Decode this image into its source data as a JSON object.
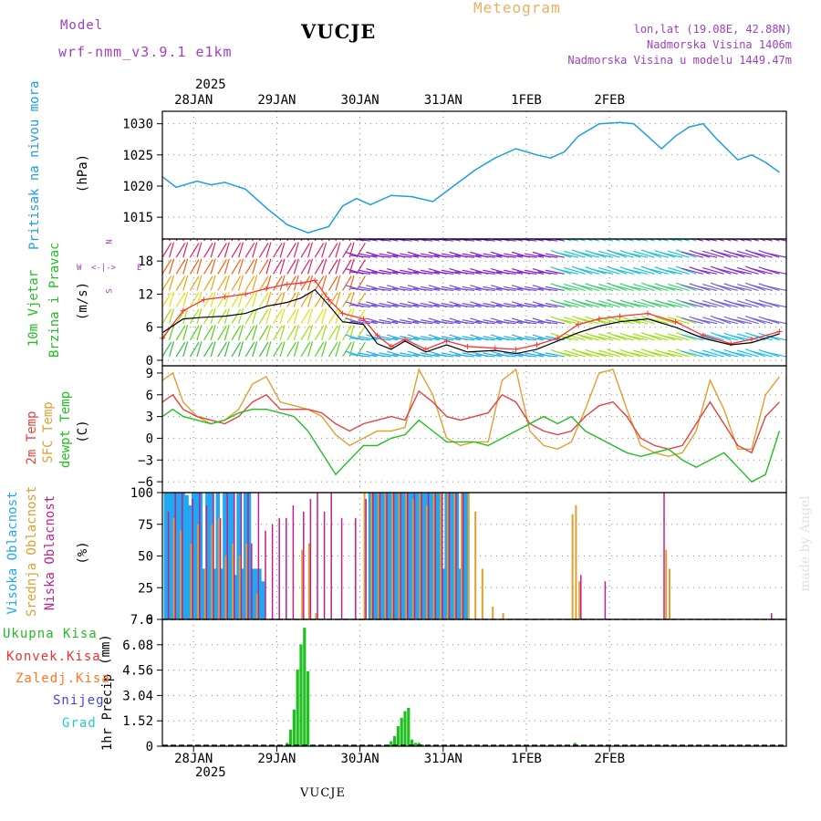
{
  "header": {
    "model_label": "Model",
    "model_name": "wrf-nmm_v3.9.1 e1km",
    "station": "VUCJE",
    "product": "Meteogram",
    "lonlat": "lon,lat (19.08E, 42.88N)",
    "elevation": "Nadmorska Visina 1406m",
    "model_elevation": "Nadmorska Visina u modelu 1449.47m",
    "bottom_station": "VUCJE",
    "watermark": "made by Angel"
  },
  "time_axis": {
    "top_year": "2025",
    "bottom_year": "2025",
    "dates": [
      "28JAN",
      "29JAN",
      "30JAN",
      "31JAN",
      "1FEB",
      "2FEB"
    ]
  },
  "panel_labels": {
    "pressure": {
      "name": "Pritisak na nivou mora",
      "unit": "(hPa)"
    },
    "wind": {
      "name1": "10m Vjetar",
      "name2": "Brzina i Pravac",
      "unit": "(m/s)",
      "compass_n": "N",
      "compass_s": "S",
      "compass_e": "E",
      "compass_w": "W",
      "compass_arrows": "<-|->"
    },
    "temp": {
      "name1": "2m Temp",
      "name2": "SFC Temp",
      "name3": "dewpt Temp",
      "unit": "(C)"
    },
    "cloud": {
      "name1": "Visoka Oblacnost",
      "name2": "Srednja Oblacnost",
      "name3": "Niska Oblacnost",
      "unit": "(%)"
    },
    "precip": {
      "name": "1hr Precip",
      "unit": "(mm)",
      "legend": [
        "Ukupna Kisa",
        "Konvek.Kisa",
        "Zaledj.Kisa",
        "Snijeg",
        "Grad"
      ]
    }
  },
  "colors": {
    "pressure_line": "#1e9ee0",
    "wind_speed": "#000000",
    "wind_gust": "#ff3333",
    "t2m": "#e84040",
    "tsfc": "#e0a030",
    "dewpt": "#20c020",
    "cloud_high": "#20a8f0",
    "cloud_mid": "#e0a030",
    "cloud_low": "#c02090",
    "precip_total": "#20c020",
    "legend_total": "#22bb22",
    "legend_conv": "#ee3333",
    "legend_frz": "#ff7722",
    "legend_snow": "#4444dd",
    "legend_hail": "#22cccc",
    "header_purple": "#a040c0",
    "header_orange": "#e8b060"
  },
  "chart_data": [
    {
      "type": "line",
      "name": "pressure",
      "time_start": "2025-01-27T15:00Z",
      "time_end": "2025-02-03T06:00Z",
      "ylabel": "(hPa)",
      "yticks": [
        1015,
        1020,
        1025,
        1030
      ],
      "ylim": [
        1011.5,
        1032
      ],
      "grid": true,
      "series": [
        {
          "x": [
            0,
            4,
            10,
            14,
            18,
            24,
            30,
            36,
            42,
            48,
            52,
            56,
            60,
            66,
            72,
            78,
            84,
            90,
            96,
            102,
            108,
            112,
            116,
            120,
            126,
            132,
            136,
            140,
            144,
            148,
            152,
            156,
            160,
            166,
            170,
            174,
            178
          ],
          "values": [
            1021.5,
            1019.8,
            1020.8,
            1020.2,
            1020.6,
            1019.5,
            1016.5,
            1013.8,
            1012.5,
            1013.5,
            1016.8,
            1018,
            1017,
            1018.5,
            1018.3,
            1017.5,
            1020,
            1022.5,
            1024.5,
            1026,
            1025,
            1024.5,
            1025.5,
            1028,
            1030,
            1030.2,
            1030,
            1028,
            1026,
            1028,
            1029.5,
            1030,
            1027.5,
            1024.2,
            1025,
            1023.8,
            1022.2
          ]
        }
      ]
    },
    {
      "type": "line",
      "name": "wind",
      "time_start": "2025-01-27T15:00Z",
      "time_end": "2025-02-03T06:00Z",
      "ylabel": "(m/s)",
      "yticks": [
        0,
        6,
        12,
        18
      ],
      "ylim": [
        -1,
        22
      ],
      "grid": true,
      "series": [
        {
          "name": "speed",
          "x": [
            0,
            6,
            12,
            18,
            24,
            30,
            36,
            40,
            44,
            48,
            52,
            58,
            62,
            66,
            70,
            76,
            82,
            88,
            96,
            102,
            108,
            114,
            120,
            126,
            132,
            140,
            148,
            156,
            164,
            170,
            178
          ],
          "values": [
            5,
            7.5,
            7.8,
            8,
            8.5,
            9.8,
            10.5,
            11.3,
            12.8,
            10,
            7,
            6.5,
            3,
            2,
            3.5,
            1.5,
            2.8,
            1.5,
            1.8,
            1.2,
            2,
            3.5,
            5,
            6.2,
            7,
            7.5,
            6,
            4,
            2.8,
            3.2,
            4.8
          ]
        },
        {
          "name": "gust",
          "x": [
            0,
            6,
            12,
            18,
            24,
            30,
            36,
            40,
            44,
            48,
            52,
            58,
            62,
            66,
            70,
            76,
            82,
            88,
            96,
            102,
            108,
            114,
            120,
            126,
            132,
            140,
            148,
            156,
            164,
            170,
            178
          ],
          "values": [
            4,
            9,
            11,
            11.5,
            12,
            13,
            13.8,
            14,
            14.5,
            11,
            8.5,
            7.5,
            4.5,
            2.5,
            3.8,
            2,
            3.5,
            2.5,
            2.2,
            2,
            2.8,
            4,
            6.5,
            7.5,
            8,
            8.5,
            7,
            4.5,
            3,
            3.8,
            5.2
          ]
        }
      ]
    },
    {
      "type": "line",
      "name": "temperature",
      "time_start": "2025-01-27T15:00Z",
      "time_end": "2025-02-03T06:00Z",
      "ylabel": "(C)",
      "yticks": [
        -6,
        -3,
        0,
        3,
        6,
        9
      ],
      "ylim": [
        -7.5,
        10
      ],
      "grid": true,
      "series": [
        {
          "name": "2m Temp",
          "x": [
            0,
            3,
            6,
            10,
            14,
            18,
            22,
            26,
            30,
            34,
            38,
            42,
            46,
            50,
            54,
            58,
            62,
            66,
            70,
            74,
            78,
            82,
            86,
            90,
            94,
            98,
            102,
            106,
            110,
            114,
            118,
            122,
            126,
            130,
            134,
            138,
            142,
            146,
            150,
            154,
            158,
            162,
            166,
            170,
            174,
            178
          ],
          "values": [
            5,
            6,
            4,
            3,
            2.5,
            2,
            3,
            5,
            6,
            4,
            4,
            4,
            3.5,
            2,
            1,
            2,
            2.5,
            3,
            2.5,
            6.5,
            5,
            3,
            2.5,
            3,
            3.5,
            6,
            5,
            2,
            1,
            0.5,
            1,
            3,
            4.5,
            5,
            3,
            0,
            -1,
            -1.5,
            -1,
            2,
            5,
            2,
            -1,
            -2,
            3,
            5
          ]
        },
        {
          "name": "SFC Temp",
          "x": [
            0,
            3,
            6,
            10,
            14,
            18,
            22,
            26,
            30,
            34,
            38,
            42,
            46,
            50,
            54,
            58,
            62,
            66,
            70,
            74,
            78,
            82,
            86,
            90,
            94,
            98,
            102,
            106,
            110,
            114,
            118,
            122,
            126,
            130,
            134,
            138,
            142,
            146,
            150,
            154,
            158,
            162,
            166,
            170,
            174,
            178
          ],
          "values": [
            8,
            9,
            5,
            3,
            2,
            2.5,
            4,
            7.5,
            8.5,
            5,
            4.5,
            4,
            3,
            0.5,
            -1,
            0,
            1,
            1,
            1.5,
            9.5,
            6,
            0,
            -1,
            -0.5,
            -0.5,
            8,
            9.5,
            1,
            -1,
            -1.5,
            -0.5,
            4,
            9,
            9.5,
            4,
            -1,
            -2,
            -2.5,
            -2,
            1,
            8,
            4,
            -1.5,
            -1.5,
            6,
            8.5
          ]
        },
        {
          "name": "dewpt Temp",
          "x": [
            0,
            3,
            6,
            10,
            14,
            18,
            22,
            26,
            30,
            34,
            38,
            42,
            46,
            50,
            54,
            58,
            62,
            66,
            70,
            74,
            78,
            82,
            86,
            90,
            94,
            98,
            102,
            106,
            110,
            114,
            118,
            122,
            126,
            130,
            134,
            138,
            142,
            146,
            150,
            154,
            158,
            162,
            166,
            170,
            174,
            178
          ],
          "values": [
            3,
            4,
            3,
            2.5,
            2,
            2.5,
            3.5,
            4,
            4,
            3.5,
            3,
            1,
            -2,
            -5,
            -3,
            -1,
            -1,
            0,
            0.5,
            2.5,
            1,
            -0.5,
            -0.5,
            -0.5,
            -1,
            0,
            1,
            2,
            3,
            2,
            3,
            1,
            0,
            -1,
            -2,
            -2.5,
            -2,
            -1.5,
            -3,
            -4,
            -3,
            -2,
            -4,
            -6,
            -5,
            1
          ]
        }
      ]
    },
    {
      "type": "bar",
      "name": "cloud_cover",
      "time_start": "2025-01-27T15:00Z",
      "time_end": "2025-02-03T06:00Z",
      "ylabel": "(%)",
      "yticks": [
        0,
        25,
        50,
        75,
        100
      ],
      "ylim": [
        0,
        100
      ],
      "series": [
        {
          "name": "Visoka Oblacnost",
          "x": [
            1,
            2,
            3,
            4,
            5,
            6,
            7,
            8,
            9,
            10,
            11,
            12,
            13,
            14,
            15,
            16,
            17,
            18,
            19,
            20,
            21,
            22,
            23,
            24,
            25,
            26,
            27,
            28,
            29,
            60,
            61,
            62,
            63,
            64,
            65,
            66,
            67,
            68,
            69,
            70,
            71,
            72,
            73,
            74,
            75,
            76,
            77,
            78,
            79,
            80,
            81,
            82,
            83,
            84,
            85,
            86,
            87,
            88
          ],
          "values": [
            100,
            100,
            100,
            100,
            100,
            100,
            98,
            90,
            100,
            100,
            100,
            40,
            100,
            100,
            40,
            100,
            40,
            100,
            100,
            100,
            35,
            100,
            40,
            100,
            100,
            40,
            40,
            40,
            30,
            100,
            100,
            100,
            100,
            100,
            100,
            100,
            100,
            100,
            100,
            100,
            100,
            100,
            100,
            100,
            100,
            100,
            100,
            100,
            100,
            100,
            40,
            100,
            100,
            100,
            100,
            40,
            100,
            100
          ]
        },
        {
          "name": "Srednja Oblacnost",
          "x": [
            3,
            5,
            8,
            10,
            12,
            14,
            16,
            18,
            20,
            22,
            24,
            27,
            40,
            42,
            44,
            58,
            60,
            62,
            64,
            66,
            68,
            70,
            72,
            74,
            76,
            78,
            80,
            82,
            84,
            86,
            88,
            90,
            92,
            95,
            98,
            118,
            119,
            120,
            145,
            146
          ],
          "values": [
            80,
            70,
            60,
            75,
            40,
            75,
            80,
            50,
            60,
            50,
            60,
            20,
            55,
            60,
            5,
            100,
            100,
            100,
            100,
            100,
            100,
            100,
            95,
            100,
            90,
            100,
            100,
            100,
            100,
            100,
            100,
            85,
            40,
            10,
            5,
            83,
            90,
            30,
            55,
            40
          ]
        },
        {
          "name": "Niska Oblacnost",
          "x": [
            2,
            4,
            6,
            9,
            11,
            13,
            15,
            17,
            19,
            21,
            23,
            25,
            26,
            28,
            30,
            32,
            34,
            36,
            38,
            41,
            43,
            45,
            47,
            49,
            52,
            56,
            59,
            61,
            63,
            65,
            67,
            69,
            71,
            73,
            75,
            77,
            79,
            81,
            83,
            85,
            87,
            121,
            128,
            145,
            176
          ],
          "values": [
            85,
            100,
            100,
            95,
            100,
            90,
            100,
            80,
            100,
            100,
            100,
            100,
            60,
            100,
            70,
            75,
            80,
            80,
            90,
            85,
            95,
            100,
            85,
            100,
            80,
            80,
            95,
            100,
            100,
            100,
            100,
            100,
            100,
            100,
            100,
            100,
            100,
            100,
            100,
            100,
            100,
            35,
            30,
            100,
            5
          ]
        }
      ]
    },
    {
      "type": "bar",
      "name": "precipitation",
      "time_start": "2025-01-27T15:00Z",
      "time_end": "2025-02-03T06:00Z",
      "ylabel": "1hr Precip (mm)",
      "yticks": [
        0,
        1.52,
        3.04,
        4.56,
        6.08,
        7.6
      ],
      "ylim": [
        0,
        7.6
      ],
      "grid": true,
      "series": [
        {
          "name": "Ukupna Kisa",
          "x": [
            36,
            37,
            38,
            39,
            40,
            41,
            42,
            66,
            67,
            68,
            69,
            70,
            71,
            72,
            73,
            74,
            75,
            119
          ],
          "values": [
            0.2,
            1.0,
            2.2,
            4.6,
            6.1,
            7.1,
            4.5,
            0.3,
            0.6,
            1.2,
            1.7,
            2.1,
            2.3,
            0.4,
            0.2,
            0.2,
            0.1,
            0.2
          ]
        }
      ]
    }
  ]
}
